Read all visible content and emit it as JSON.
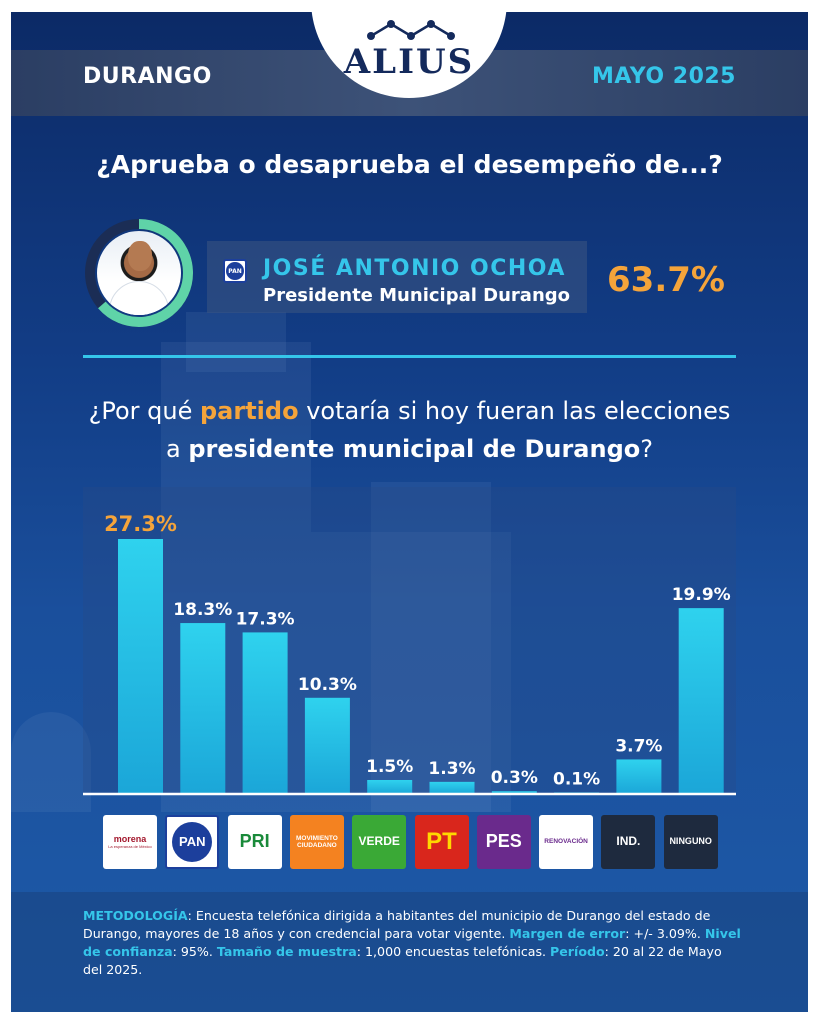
{
  "header": {
    "state": "DURANGO",
    "date": "MAYO 2025",
    "brand": "ALIUS"
  },
  "approval_question": "¿Aprueba o desaprueba el desempeño de...?",
  "candidate": {
    "name": "JOSÉ ANTONIO OCHOA",
    "role": "Presidente Municipal Durango",
    "party_badge": "PAN",
    "approval": "63.7%",
    "approval_value": 63.7
  },
  "vote_question": {
    "part1": "¿Por qué ",
    "highlight1": "partido",
    "part2": " votaría si hoy fueran las elecciones",
    "part3": "a ",
    "highlight2": "presidente municipal de Durango",
    "part4": "?"
  },
  "chart_data": {
    "type": "bar",
    "title": "",
    "xlabel": "",
    "ylabel": "",
    "ylim": [
      0,
      27.3
    ],
    "grid": false,
    "categories": [
      "morena",
      "PAN",
      "PRI",
      "MOVIMIENTO CIUDADANO",
      "VERDE",
      "PT",
      "PES",
      "RENOVACIÓN",
      "IND.",
      "NINGUNO"
    ],
    "values": [
      27.3,
      18.3,
      17.3,
      10.3,
      1.5,
      1.3,
      0.3,
      0.1,
      3.7,
      19.9
    ],
    "labels": [
      "27.3%",
      "18.3%",
      "17.3%",
      "10.3%",
      "1.5%",
      "1.3%",
      "0.3%",
      "0.1%",
      "3.7%",
      "19.9%"
    ],
    "colors": {
      "bar_top": "#2fd2ee",
      "bar_bottom": "#1ba6d8",
      "highlight_label": "#f5a43a",
      "label": "#ffffff"
    }
  },
  "party_logos": [
    {
      "name": "morena",
      "sub": "La esperanza de México",
      "bg": "#ffffff",
      "fg": "#a3182d"
    },
    {
      "name": "PAN",
      "sub": "",
      "bg": "#ffffff",
      "fg": "#1c3f9c"
    },
    {
      "name": "PRI",
      "sub": "",
      "bg": "#ffffff",
      "fg": "#1a8a3a"
    },
    {
      "name": "MOVIMIENTO CIUDADANO",
      "sub": "",
      "bg": "#f48220",
      "fg": "#ffffff"
    },
    {
      "name": "VERDE",
      "sub": "",
      "bg": "#3aa936",
      "fg": "#ffffff"
    },
    {
      "name": "PT",
      "sub": "",
      "bg": "#d9261c",
      "fg": "#ffd800"
    },
    {
      "name": "PES",
      "sub": "",
      "bg": "#6a2a8c",
      "fg": "#ffffff"
    },
    {
      "name": "RENOVACIÓN",
      "sub": "",
      "bg": "#ffffff",
      "fg": "#6a2a8c"
    },
    {
      "name": "IND.",
      "sub": "",
      "bg": "#1e2a3e",
      "fg": "#ffffff"
    },
    {
      "name": "NINGUNO",
      "sub": "",
      "bg": "#1e2a3e",
      "fg": "#ffffff"
    }
  ],
  "methodology": {
    "k1": "METODOLOGÍA",
    "t1": ": Encuesta telefónica dirigida a habitantes del municipio de Durango del estado de Durango, mayores de 18 años y con credencial para votar vigente. ",
    "k2": "Margen de error",
    "t2": ": +/- 3.09%. ",
    "k3": "Nivel de confianza",
    "t3": ": 95%. ",
    "k4": "Tamaño de muestra",
    "t4": ": 1,000 encuestas telefónicas. ",
    "k5": "Período",
    "t5": ": 20 al 22 de Mayo del 2025."
  }
}
